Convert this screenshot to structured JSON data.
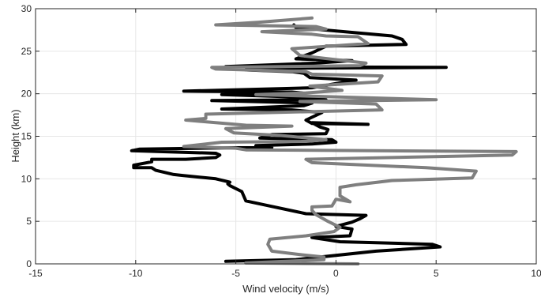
{
  "chart_data": {
    "type": "line",
    "title": "",
    "xlabel": "Wind velocity (m/s)",
    "ylabel": "Height (km)",
    "xlim": [
      -15,
      10
    ],
    "ylim": [
      0,
      30
    ],
    "xticks": [
      -15,
      -10,
      -5,
      0,
      5,
      10
    ],
    "yticks": [
      0,
      5,
      10,
      15,
      20,
      25,
      30
    ],
    "xtick_labels": [
      "-15",
      "-10",
      "-5",
      "0",
      "5",
      "10"
    ],
    "ytick_labels": [
      "0",
      "5",
      "10",
      "15",
      "20",
      "25",
      "30"
    ],
    "grid": true,
    "series": [
      {
        "color": "#000000",
        "x": [
          -5.5,
          -2,
          2,
          5.2,
          4.8,
          0.2,
          -1.2,
          0.7,
          0.8,
          0,
          0.8,
          1.2,
          1.5,
          -1.5,
          -3.5,
          -4.5,
          -4.7,
          -5.3,
          -5.4,
          -5.3,
          -6,
          -7.7,
          -8.1,
          -9,
          -9.2,
          -10.1,
          -10.1,
          -9.2,
          -9.2,
          -7.5,
          -6,
          -5.8,
          -6,
          -10.2,
          -9.8,
          -3.2,
          -4,
          -1.2,
          0,
          -0.2,
          -3.8,
          -3.2,
          -0.5,
          -0.4,
          -0.8,
          -1.2,
          1.6,
          -1.2,
          -1.5,
          -0.7,
          -2.2,
          -5.7,
          -1.6,
          -1.2,
          -6.2,
          -0.5,
          -1.7,
          -5.7,
          -1.7,
          -2.2,
          -7.6,
          -1.2,
          1,
          -1.3,
          -1.6,
          -2.2,
          -4.5,
          -2.7,
          5.5,
          -5.5,
          -1,
          0.8,
          -2,
          -1.2,
          -0.5,
          3.5,
          3.3,
          2.8,
          -2,
          -2.1
        ],
        "y": [
          0.3,
          0.5,
          1.5,
          2,
          2.3,
          2.6,
          3.1,
          3.3,
          4.1,
          4.4,
          4.9,
          5.3,
          5.7,
          5.9,
          6.9,
          7.4,
          8.5,
          9.2,
          9.4,
          9.6,
          10,
          10.4,
          10.5,
          11,
          11.3,
          11.3,
          11.6,
          12,
          12.3,
          12.3,
          12.5,
          12.8,
          13,
          13.3,
          13.5,
          13.7,
          13.9,
          14.1,
          14.3,
          14.6,
          14.8,
          15.2,
          15.3,
          15.8,
          16.1,
          16.6,
          16.4,
          16.5,
          16.9,
          17.8,
          18.1,
          18.2,
          18.6,
          18.9,
          19.2,
          19.3,
          19.6,
          19.9,
          20.1,
          20.2,
          20.3,
          20.7,
          21.6,
          21.9,
          22.4,
          22.6,
          22.8,
          23,
          23.1,
          23.2,
          23.6,
          23.9,
          24.1,
          24.8,
          25.6,
          25.8,
          26.4,
          26.8,
          27.8,
          28.1
        ]
      },
      {
        "color": "#7f7f7f",
        "x": [
          1.1,
          -4.5,
          -0.6,
          -0.6,
          -1.8,
          -3.2,
          -3.4,
          -3.3,
          -1.5,
          -0.1,
          0.2,
          -0.4,
          -1,
          -1.2,
          -1.2,
          -0.2,
          0,
          0.7,
          0.2,
          0.2,
          1,
          2.8,
          6.8,
          7,
          4.5,
          -1.2,
          -1.5,
          8.8,
          9,
          -4.5,
          -5,
          -7.6,
          -5.7,
          -1.5,
          -0.5,
          -2.8,
          -5.1,
          -5.5,
          -2.2,
          -4.5,
          -7.5,
          -6.5,
          -6.5,
          2.3,
          2,
          -1.8,
          5,
          -4,
          -1.5,
          0.3,
          -1.3,
          2.1,
          2.3,
          -1.2,
          -1.5,
          -6,
          -6.2,
          1.2,
          1.5,
          -1.8,
          -2.2,
          1.6,
          1.1,
          -0.5,
          -1.2,
          -3.7,
          -0.5,
          -1,
          -6,
          -3.9,
          -1.2
        ],
        "y": [
          0,
          0.1,
          0.5,
          0.8,
          1.1,
          1.5,
          2.3,
          2.9,
          3.3,
          3.8,
          4.3,
          5,
          5.8,
          6.3,
          6.7,
          6.8,
          7.6,
          7.3,
          8,
          9,
          9.3,
          9.8,
          10.1,
          10.9,
          11.3,
          11.9,
          12.3,
          12.8,
          13.2,
          13.4,
          13.6,
          13.8,
          14.3,
          14.4,
          14.6,
          15.1,
          15.4,
          15.9,
          16.2,
          16.3,
          16.9,
          17.1,
          17.6,
          18.1,
          18.8,
          19.1,
          19.3,
          19.9,
          20.1,
          20.4,
          20.9,
          21.4,
          22.1,
          22.3,
          22.6,
          22.9,
          23.1,
          23.3,
          23.6,
          24.5,
          25.3,
          25.9,
          26.7,
          26.8,
          27,
          27.3,
          27.6,
          27.9,
          28.1,
          28.4,
          28.9
        ]
      }
    ]
  }
}
